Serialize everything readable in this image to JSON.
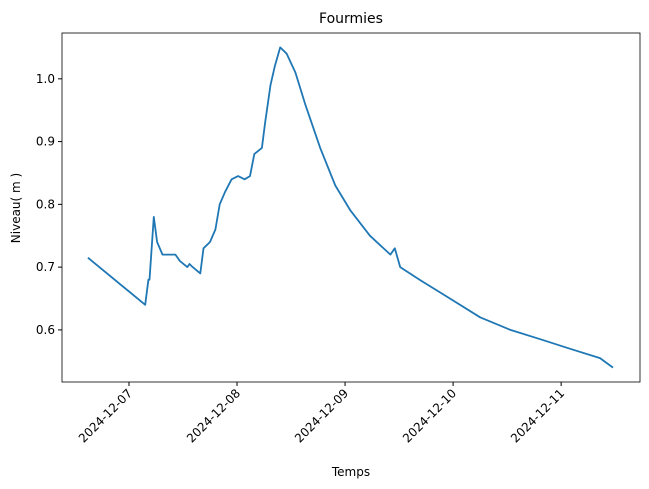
{
  "chart_data": {
    "type": "line",
    "title": "Fourmies",
    "xlabel": "Temps",
    "ylabel": "Niveau( m )",
    "x": [
      -0.38,
      0.15,
      0.18,
      0.19,
      0.23,
      0.26,
      0.31,
      0.43,
      0.47,
      0.54,
      0.56,
      0.59,
      0.66,
      0.69,
      0.75,
      0.8,
      0.84,
      0.89,
      0.95,
      1.01,
      1.07,
      1.12,
      1.16,
      1.23,
      1.26,
      1.31,
      1.35,
      1.4,
      1.46,
      1.54,
      1.63,
      1.77,
      1.91,
      2.05,
      2.23,
      2.42,
      2.46,
      2.51,
      2.69,
      2.97,
      3.25,
      3.53,
      3.81,
      4.08,
      4.36,
      4.48
    ],
    "series": [
      {
        "name": "Niveau",
        "color": "#1f77b4",
        "values": [
          0.715,
          0.64,
          0.68,
          0.68,
          0.78,
          0.74,
          0.72,
          0.72,
          0.71,
          0.7,
          0.705,
          0.7,
          0.69,
          0.73,
          0.74,
          0.76,
          0.8,
          0.82,
          0.84,
          0.845,
          0.84,
          0.845,
          0.88,
          0.89,
          0.93,
          0.99,
          1.02,
          1.05,
          1.04,
          1.01,
          0.96,
          0.89,
          0.83,
          0.79,
          0.75,
          0.72,
          0.73,
          0.7,
          0.68,
          0.65,
          0.62,
          0.6,
          0.585,
          0.57,
          0.555,
          0.54
        ]
      }
    ],
    "xlim": [
      -0.62,
      4.73
    ],
    "xticks": [
      {
        "value": 0,
        "label": "2024-12-07"
      },
      {
        "value": 1,
        "label": "2024-12-08"
      },
      {
        "value": 2,
        "label": "2024-12-09"
      },
      {
        "value": 3,
        "label": "2024-12-10"
      },
      {
        "value": 4,
        "label": "2024-12-11"
      }
    ],
    "ylim": [
      0.517,
      1.073
    ],
    "yticks": [
      0.6,
      0.7,
      0.8,
      0.9,
      {
        "value": 1,
        "label": "1.0"
      }
    ]
  }
}
